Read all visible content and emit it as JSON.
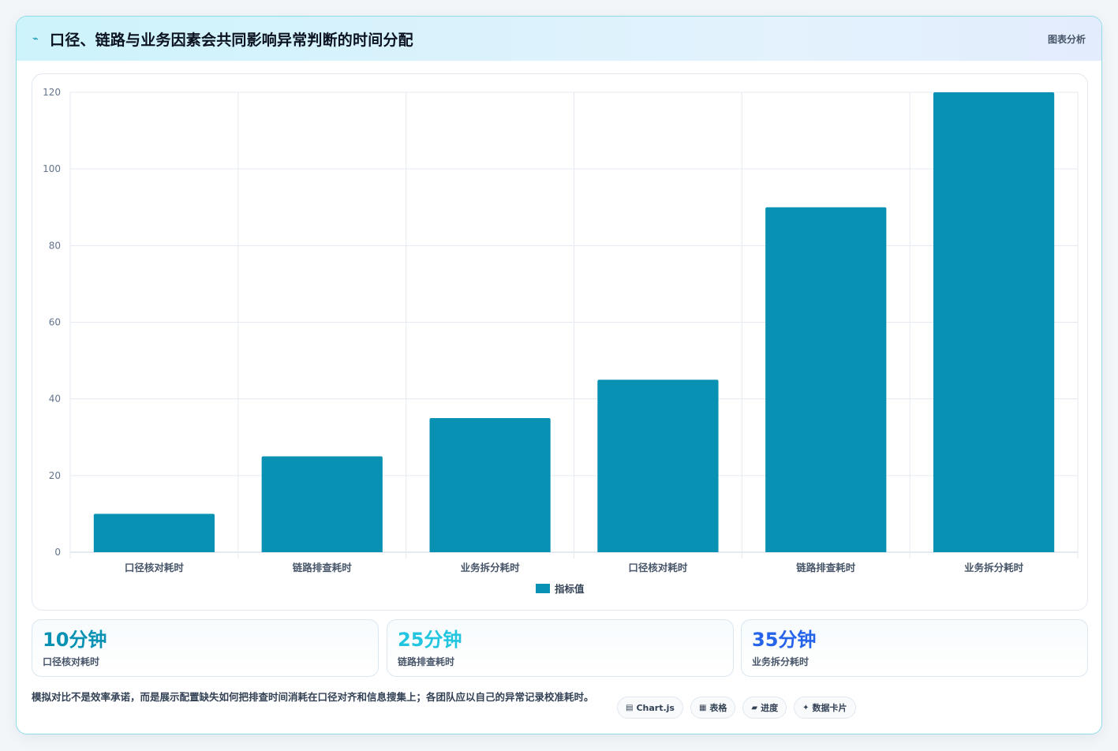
{
  "header": {
    "icon": "sparkline-icon",
    "title": "口径、链路与业务因素会共同影响异常判断的时间分配",
    "right_label": "图表分析"
  },
  "chart_data": {
    "type": "bar",
    "categories": [
      "口径核对耗时",
      "链路排查耗时",
      "业务拆分耗时",
      "口径核对耗时",
      "链路排查耗时",
      "业务拆分耗时"
    ],
    "series": [
      {
        "name": "指标值",
        "values": [
          10,
          25,
          35,
          45,
          90,
          120
        ],
        "color": "#0891b2"
      }
    ],
    "ylim": [
      0,
      120
    ],
    "yticks": [
      0,
      20,
      40,
      60,
      80,
      100,
      120
    ],
    "grid": true,
    "legend": "bottom"
  },
  "stats": [
    {
      "value": "10分钟",
      "label": "口径核对耗时",
      "color": "#0891b2"
    },
    {
      "value": "25分钟",
      "label": "链路排查耗时",
      "color": "#22c5e0"
    },
    {
      "value": "35分钟",
      "label": "业务拆分耗时",
      "color": "#2563eb"
    }
  ],
  "footer": {
    "note": "模拟对比不是效率承诺，而是展示配置缺失如何把排查时间消耗在口径对齐和信息搜集上；各团队应以自己的异常记录校准耗时。",
    "tags": [
      {
        "icon": "chart-icon",
        "glyph": "▤",
        "label": "Chart.js"
      },
      {
        "icon": "table-icon",
        "glyph": "▦",
        "label": "表格"
      },
      {
        "icon": "progress-icon",
        "glyph": "▰",
        "label": "进度"
      },
      {
        "icon": "sparkle-icon",
        "glyph": "✦",
        "label": "数据卡片"
      }
    ]
  }
}
